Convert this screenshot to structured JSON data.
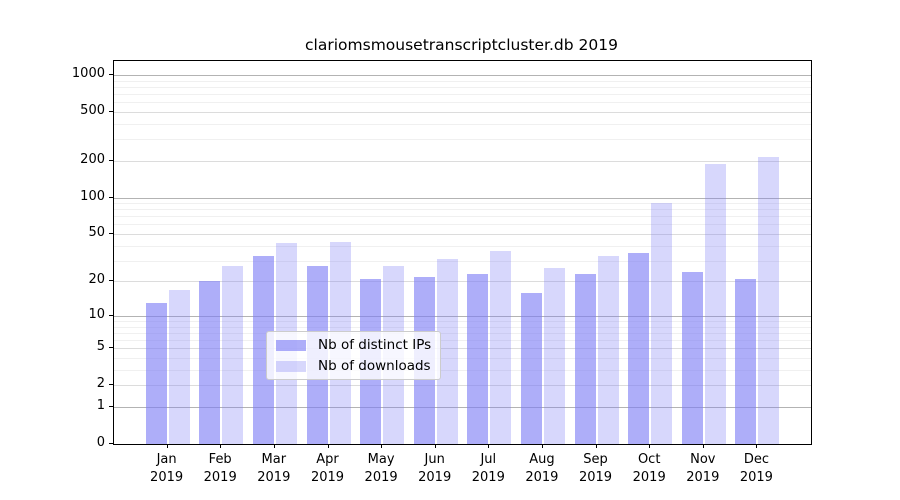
{
  "chart_data": {
    "type": "bar",
    "title": "clariomsmousetranscriptcluster.db 2019",
    "x_months": [
      "Jan",
      "Feb",
      "Mar",
      "Apr",
      "May",
      "Jun",
      "Jul",
      "Aug",
      "Sep",
      "Oct",
      "Nov",
      "Dec"
    ],
    "x_year": "2019",
    "series": [
      {
        "name": "Nb of distinct IPs",
        "color": "rgba(124,124,245,0.62)",
        "values": [
          13,
          20,
          33,
          27,
          21,
          22,
          23,
          16,
          23,
          35,
          24,
          21
        ]
      },
      {
        "name": "Nb of downloads",
        "color": "rgba(124,124,245,0.30)",
        "values": [
          17,
          27,
          42,
          43,
          27,
          31,
          36,
          26,
          33,
          90,
          190,
          215
        ]
      }
    ],
    "yticks": [
      0,
      1,
      2,
      5,
      10,
      20,
      50,
      100,
      200,
      500,
      1000
    ],
    "scale": "log10(value+1)",
    "ymax": 1300,
    "ylim": [
      0,
      1300
    ],
    "grid": {
      "major_values": [
        1,
        10,
        100,
        1000
      ],
      "mid_values": [
        2,
        5,
        20,
        50,
        200,
        500
      ],
      "minor_values": [
        3,
        4,
        6,
        7,
        8,
        9,
        30,
        40,
        60,
        70,
        80,
        90,
        300,
        400,
        600,
        700,
        800,
        900
      ],
      "major_color": "#b3b3b3",
      "mid_color": "#dcdcdc",
      "minor_color": "#f0f0f0"
    },
    "legend_position": "lower center"
  }
}
